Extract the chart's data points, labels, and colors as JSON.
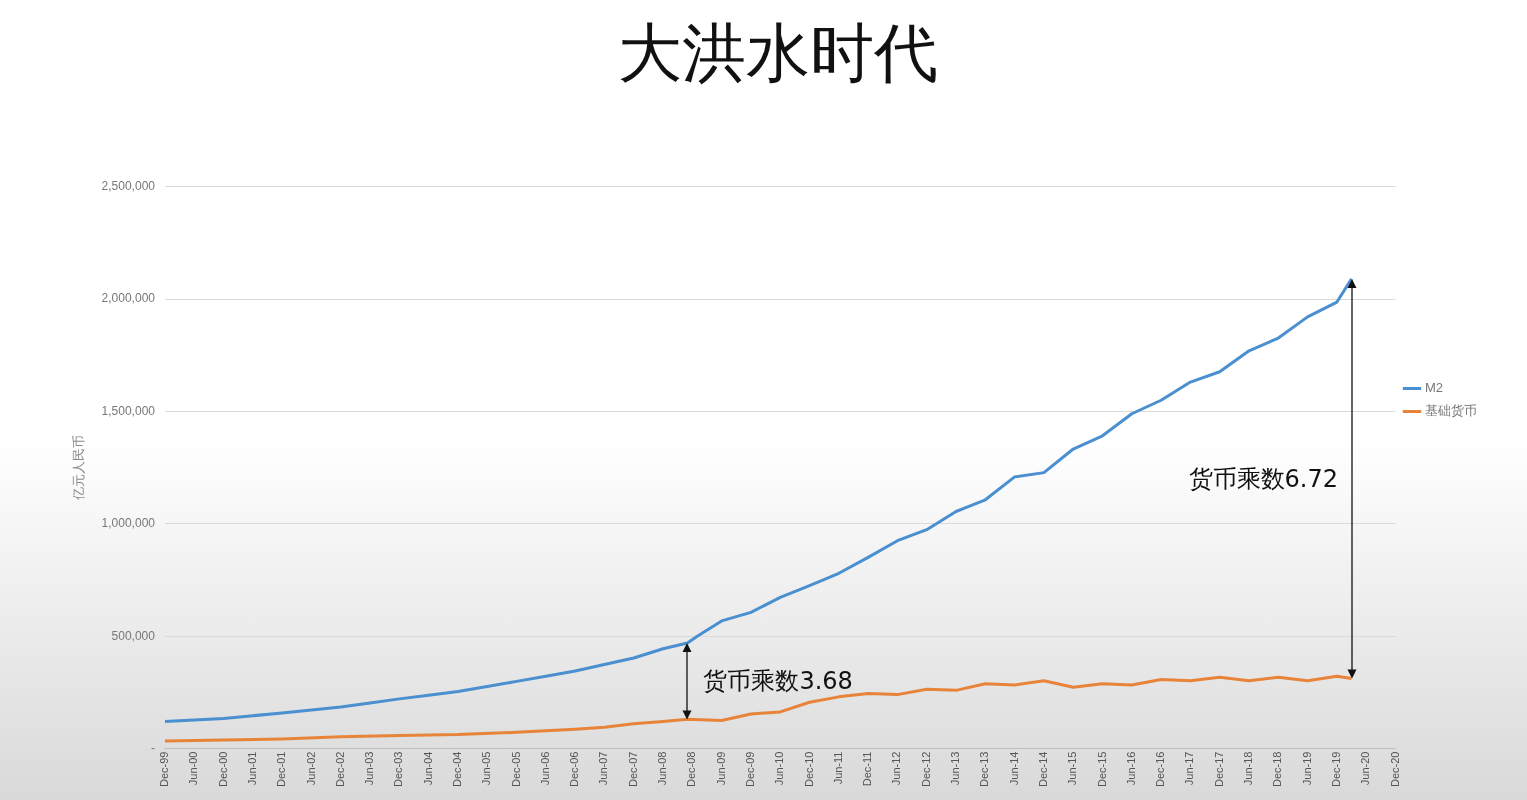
{
  "chart_data": {
    "type": "line",
    "title": "大洪水时代",
    "ylabel": "亿元人民币",
    "series": [
      {
        "name": "M2",
        "color": "#4a8fcf",
        "x": [
          "1999-12",
          "2000-06",
          "2000-12",
          "2001-06",
          "2001-12",
          "2002-06",
          "2002-12",
          "2003-06",
          "2003-12",
          "2004-06",
          "2004-12",
          "2005-06",
          "2005-12",
          "2006-06",
          "2006-12",
          "2007-06",
          "2007-12",
          "2008-06",
          "2008-11",
          "2009-01",
          "2009-06",
          "2009-12",
          "2010-06",
          "2010-12",
          "2011-06",
          "2011-12",
          "2012-06",
          "2012-12",
          "2013-06",
          "2013-12",
          "2014-06",
          "2014-12",
          "2015-06",
          "2015-12",
          "2016-06",
          "2016-12",
          "2017-06",
          "2017-12",
          "2018-06",
          "2018-12",
          "2019-06",
          "2019-12",
          "2020-03"
        ],
        "values": [
          120000,
          127000,
          134000,
          146000,
          158000,
          171000,
          185000,
          203000,
          221000,
          237000,
          254000,
          276000,
          299000,
          322000,
          345000,
          374000,
          403000,
          444000,
          470000,
          500000,
          568000,
          606000,
          673000,
          725000,
          780000,
          851000,
          925000,
          974000,
          1055000,
          1107000,
          1209000,
          1228000,
          1333000,
          1392000,
          1490000,
          1550000,
          1631000,
          1677000,
          1770000,
          1827000,
          1921000,
          1987000,
          2090000
        ]
      },
      {
        "name": "基础货币",
        "color": "#e8843a",
        "x": [
          "1999-12",
          "2000-12",
          "2001-12",
          "2002-12",
          "2003-12",
          "2004-12",
          "2005-12",
          "2006-12",
          "2007-06",
          "2007-12",
          "2008-06",
          "2008-11",
          "2009-06",
          "2009-12",
          "2010-06",
          "2010-12",
          "2011-06",
          "2011-12",
          "2012-06",
          "2012-12",
          "2013-06",
          "2013-12",
          "2014-06",
          "2014-12",
          "2015-06",
          "2015-12",
          "2016-06",
          "2016-12",
          "2017-06",
          "2017-12",
          "2018-06",
          "2018-12",
          "2019-06",
          "2019-12",
          "2020-03"
        ],
        "values": [
          34000,
          38000,
          43000,
          53000,
          58000,
          62000,
          72000,
          86000,
          95000,
          110000,
          120000,
          130000,
          125000,
          154000,
          163000,
          206000,
          230000,
          245000,
          240000,
          264000,
          259000,
          288000,
          283000,
          302000,
          273000,
          288000,
          283000,
          307000,
          302000,
          317000,
          302000,
          317000,
          302000,
          322000,
          312000
        ]
      }
    ],
    "xlim": [
      "1999-12",
      "2020-12"
    ],
    "xticks": [
      {
        "value": "1999-12",
        "label": "Dec-99"
      },
      {
        "value": "2000-06",
        "label": "Jun-00"
      },
      {
        "value": "2000-12",
        "label": "Dec-00"
      },
      {
        "value": "2001-06",
        "label": "Jun-01"
      },
      {
        "value": "2001-12",
        "label": "Dec-01"
      },
      {
        "value": "2002-06",
        "label": "Jun-02"
      },
      {
        "value": "2002-12",
        "label": "Dec-02"
      },
      {
        "value": "2003-06",
        "label": "Jun-03"
      },
      {
        "value": "2003-12",
        "label": "Dec-03"
      },
      {
        "value": "2004-06",
        "label": "Jun-04"
      },
      {
        "value": "2004-12",
        "label": "Dec-04"
      },
      {
        "value": "2005-06",
        "label": "Jun-05"
      },
      {
        "value": "2005-12",
        "label": "Dec-05"
      },
      {
        "value": "2006-06",
        "label": "Jun-06"
      },
      {
        "value": "2006-12",
        "label": "Dec-06"
      },
      {
        "value": "2007-06",
        "label": "Jun-07"
      },
      {
        "value": "2007-12",
        "label": "Dec-07"
      },
      {
        "value": "2008-06",
        "label": "Jun-08"
      },
      {
        "value": "2008-12",
        "label": "Dec-08"
      },
      {
        "value": "2009-06",
        "label": "Jun-09"
      },
      {
        "value": "2009-12",
        "label": "Dec-09"
      },
      {
        "value": "2010-06",
        "label": "Jun-10"
      },
      {
        "value": "2010-12",
        "label": "Dec-10"
      },
      {
        "value": "2011-06",
        "label": "Jun-11"
      },
      {
        "value": "2011-12",
        "label": "Dec-11"
      },
      {
        "value": "2012-06",
        "label": "Jun-12"
      },
      {
        "value": "2012-12",
        "label": "Dec-12"
      },
      {
        "value": "2013-06",
        "label": "Jun-13"
      },
      {
        "value": "2013-12",
        "label": "Dec-13"
      },
      {
        "value": "2014-06",
        "label": "Jun-14"
      },
      {
        "value": "2014-12",
        "label": "Dec-14"
      },
      {
        "value": "2015-06",
        "label": "Jun-15"
      },
      {
        "value": "2015-12",
        "label": "Dec-15"
      },
      {
        "value": "2016-06",
        "label": "Jun-16"
      },
      {
        "value": "2016-12",
        "label": "Dec-16"
      },
      {
        "value": "2017-06",
        "label": "Jun-17"
      },
      {
        "value": "2017-12",
        "label": "Dec-17"
      },
      {
        "value": "2018-06",
        "label": "Jun-18"
      },
      {
        "value": "2018-12",
        "label": "Dec-18"
      },
      {
        "value": "2019-06",
        "label": "Jun-19"
      },
      {
        "value": "2019-12",
        "label": "Dec-19"
      },
      {
        "value": "2020-06",
        "label": "Jun-20"
      },
      {
        "value": "2020-12",
        "label": "Dec-20"
      }
    ],
    "ylim": [
      0,
      2500000
    ],
    "yticks": [
      {
        "value": 0,
        "label": "-"
      },
      {
        "value": 500000,
        "label": "500,000"
      },
      {
        "value": 1000000,
        "label": "1,000,000"
      },
      {
        "value": 1500000,
        "label": "1,500,000"
      },
      {
        "value": 2000000,
        "label": "2,000,000"
      },
      {
        "value": 2500000,
        "label": "2,500,000"
      }
    ],
    "grid": "y",
    "legend": "right",
    "marker": "none",
    "line_style": "solid",
    "annotations": [
      {
        "text": "货币乘数3.68",
        "x": "2008-11",
        "y": 470000
      },
      "货币乘数6.72"
    ]
  }
}
